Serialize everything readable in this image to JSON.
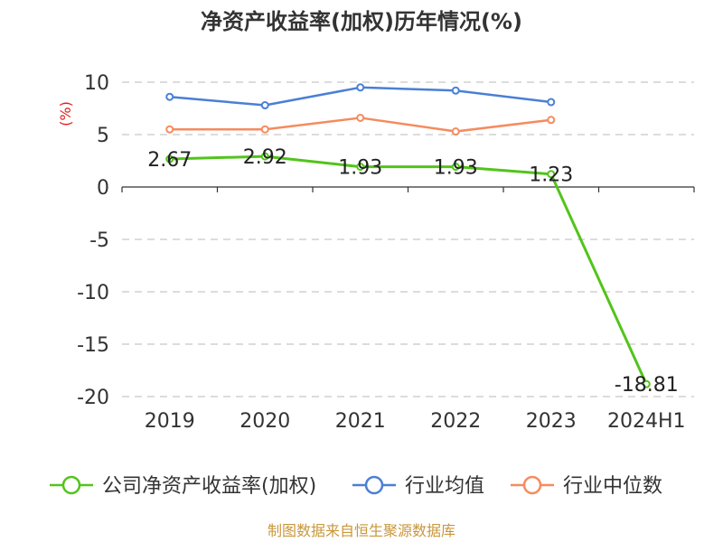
{
  "chart_data": {
    "type": "line",
    "title": "净资产收益率(加权)历年情况(%)",
    "ylabel": "(%)",
    "xlabel": "",
    "categories": [
      "2019",
      "2020",
      "2021",
      "2022",
      "2023",
      "2024H1"
    ],
    "ylim": [
      -20,
      10
    ],
    "yticks": [
      10,
      5,
      0,
      -5,
      -10,
      -15,
      -20
    ],
    "grid": true,
    "legend_position": "bottom",
    "series": [
      {
        "name": "公司净资产收益率(加权)",
        "color": "#52c41a",
        "values": [
          2.67,
          2.92,
          1.93,
          1.93,
          1.23,
          -18.81
        ],
        "labels": [
          "2.67",
          "2.92",
          "1.93",
          "1.93",
          "1.23",
          "-18.81"
        ]
      },
      {
        "name": "行业均值",
        "color": "#4a7fd6",
        "values": [
          8.6,
          7.8,
          9.5,
          9.2,
          8.1,
          null
        ]
      },
      {
        "name": "行业中位数",
        "color": "#f58b5e",
        "values": [
          5.5,
          5.5,
          6.6,
          5.3,
          6.4,
          null
        ]
      }
    ],
    "source": "制图数据来自恒生聚源数据库"
  }
}
